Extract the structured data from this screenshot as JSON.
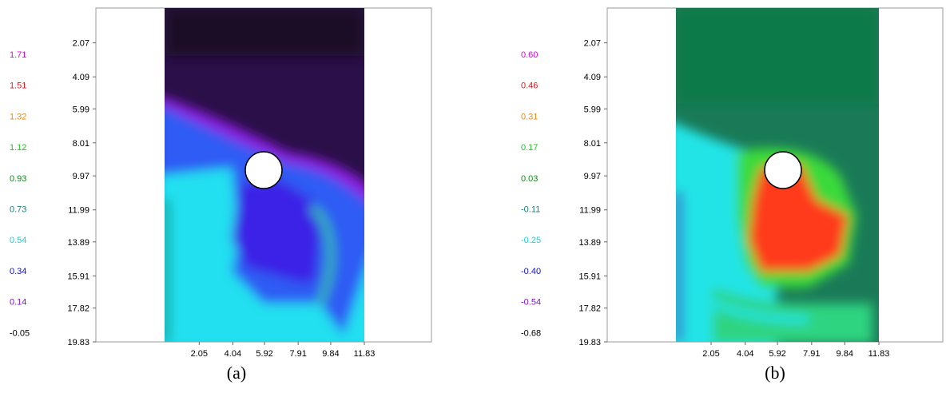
{
  "chart_data": [
    {
      "type": "heatmap",
      "caption": "(a)",
      "legend_values": [
        "1.71",
        "1.51",
        "1.32",
        "1.12",
        "0.93",
        "0.73",
        "0.54",
        "0.34",
        "0.14",
        "-0.05"
      ],
      "legend_colors": [
        "#e000e0",
        "#e01818",
        "#e88a18",
        "#18c818",
        "#108a18",
        "#16807e",
        "#18d0dc",
        "#1010c0",
        "#8010c8",
        "#000000"
      ],
      "y_ticks": [
        "2.07",
        "4.09",
        "5.99",
        "8.01",
        "9.97",
        "11.99",
        "13.89",
        "15.91",
        "17.82",
        "19.83"
      ],
      "x_ticks": [
        "2.05",
        "4.04",
        "5.92",
        "7.91",
        "9.84",
        "11.83"
      ],
      "xlim": [
        0,
        11.83
      ],
      "ylim": [
        0,
        19.83
      ],
      "colors": {
        "background": "#2a0f48",
        "mid": "#2d5cf4",
        "low": "#20e0f0",
        "core": "#3a22e6",
        "edge": "#0c7a2c"
      }
    },
    {
      "type": "heatmap",
      "caption": "(b)",
      "legend_values": [
        "0.60",
        "0.46",
        "0.31",
        "0.17",
        "0.03",
        "-0.11",
        "-0.25",
        "-0.40",
        "-0.54",
        "-0.68"
      ],
      "legend_colors": [
        "#e000e0",
        "#e01818",
        "#e88a18",
        "#18c818",
        "#108a18",
        "#16807e",
        "#18d0dc",
        "#1010c0",
        "#8010c8",
        "#000000"
      ],
      "y_ticks": [
        "2.07",
        "4.09",
        "5.99",
        "8.01",
        "9.97",
        "11.99",
        "13.89",
        "15.91",
        "17.82",
        "19.83"
      ],
      "x_ticks": [
        "2.05",
        "4.04",
        "5.92",
        "7.91",
        "9.84",
        "11.83"
      ],
      "xlim": [
        0,
        11.83
      ],
      "ylim": [
        0,
        19.83
      ],
      "colors": {
        "background": "#1a7a58",
        "mid": "#12b878",
        "low": "#24e4e6",
        "core": "#ff3a1e",
        "edge": "#3ada3a"
      }
    }
  ]
}
